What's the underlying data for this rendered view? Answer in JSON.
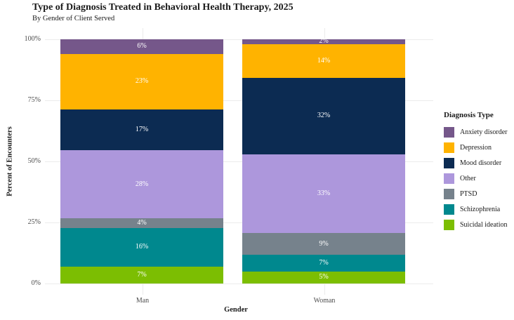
{
  "title": "Type of Diagnosis Treated in Behavioral Health Therapy, 2025",
  "subtitle": "By Gender of Client Served",
  "chart_data": {
    "type": "bar",
    "stacked": true,
    "title": "Type of Diagnosis Treated in Behavioral Health Therapy, 2025",
    "subtitle": "By Gender of Client Served",
    "xlabel": "Gender",
    "ylabel": "Percent of Encounters",
    "categories": [
      "Man",
      "Woman"
    ],
    "series": [
      {
        "name": "Anxiety disorder",
        "color": "#75578A",
        "values": [
          6,
          2
        ]
      },
      {
        "name": "Depression",
        "color": "#FFB300",
        "values": [
          23,
          14
        ]
      },
      {
        "name": "Mood disorder",
        "color": "#0C2B52",
        "values": [
          17,
          32
        ]
      },
      {
        "name": "Other",
        "color": "#AD97DC",
        "values": [
          28,
          33
        ]
      },
      {
        "name": "PTSD",
        "color": "#76828C",
        "values": [
          4,
          9
        ]
      },
      {
        "name": "Schizophrenia",
        "color": "#00888E",
        "values": [
          16,
          7
        ]
      },
      {
        "name": "Suicidal ideation",
        "color": "#7CBE02",
        "values": [
          7,
          5
        ]
      }
    ],
    "stack_order_bottom_to_top": [
      "Suicidal ideation",
      "Schizophrenia",
      "PTSD",
      "Other",
      "Mood disorder",
      "Depression",
      "Anxiety disorder"
    ],
    "bar_label_suffix": "%",
    "ylim": [
      0,
      100
    ],
    "y_tick_values": [
      0,
      25,
      50,
      75,
      100
    ],
    "y_tick_labels": [
      "0%",
      "25%",
      "50%",
      "75%",
      "100%"
    ],
    "grid": true,
    "legend_title": "Diagnosis Type",
    "legend_position": "right"
  }
}
